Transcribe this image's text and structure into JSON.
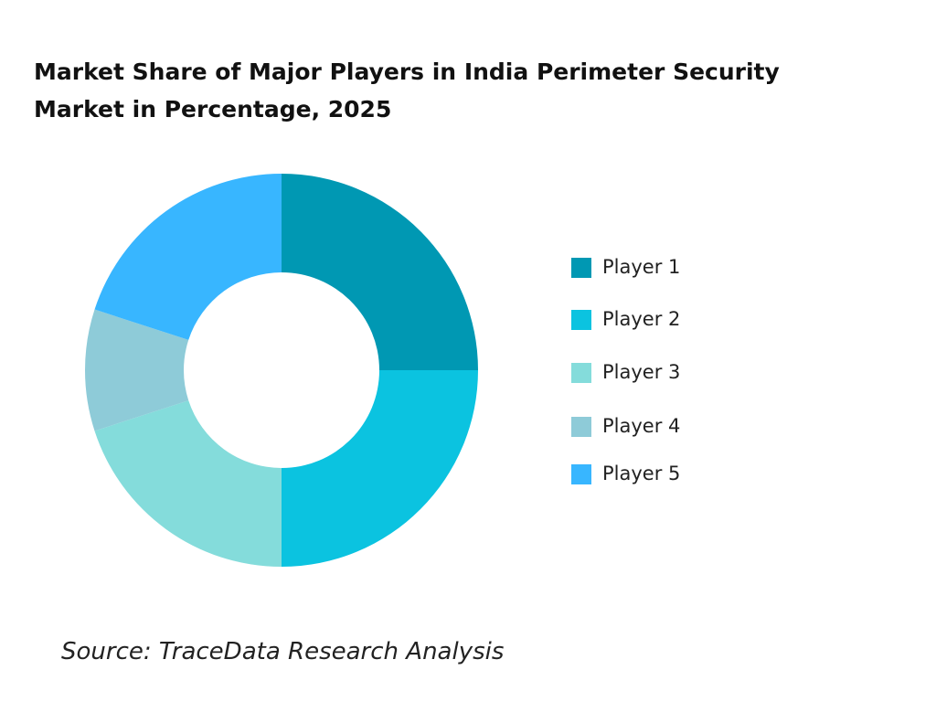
{
  "chart_data": {
    "type": "donut",
    "title": "Market Share of Major Players in India Perimeter Security Market in Percentage, 2025",
    "categories": [
      "Player 1",
      "Player 2",
      "Player 3",
      "Player 4",
      "Player 5"
    ],
    "values": [
      25,
      25,
      20,
      10,
      20
    ],
    "colors": [
      "#0098b3",
      "#0bc3e0",
      "#84dcdb",
      "#8ecbd8",
      "#38b6ff"
    ],
    "legend": "right",
    "source": "Source: TraceData Research Analysis"
  }
}
